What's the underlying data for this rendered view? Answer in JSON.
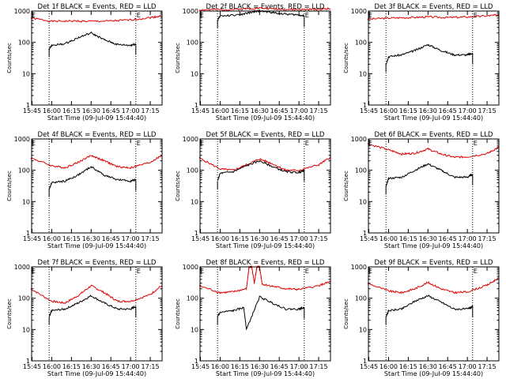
{
  "figure": {
    "colors": {
      "events": "#000000",
      "lld": "#e00000",
      "axis": "#000000",
      "background": "#ffffff"
    }
  },
  "chart_data": [
    {
      "type": "line",
      "title": "Det 1f BLACK = Events, RED = LLD",
      "xlabel": "Start Time (09-Jul-09 15:44:40)",
      "ylabel": "Counts/sec",
      "yscale": "log",
      "ylim": [
        1,
        1000
      ],
      "yticks": [
        "1",
        "10",
        "100",
        "1000"
      ],
      "xticks": [
        "15:45",
        "16:00",
        "16:15",
        "16:30",
        "16:45",
        "17:00",
        "17:15"
      ],
      "xlim": [
        "15:44:40",
        "17:24"
      ],
      "vertical_markers": [
        {
          "x": "15:58",
          "style": "dotted"
        },
        {
          "x": "17:04",
          "style": "dotted"
        }
      ],
      "marker_labels": [
        {
          "text": "E",
          "x": "15:44"
        },
        {
          "text": "E",
          "x": "17:04"
        }
      ],
      "series": [
        {
          "name": "LLD",
          "color": "red",
          "x": [
            "15:44",
            "16:00",
            "16:15",
            "16:30",
            "16:45",
            "17:00",
            "17:15",
            "17:24"
          ],
          "y": [
            600,
            470,
            480,
            470,
            480,
            520,
            620,
            700
          ]
        },
        {
          "name": "Events",
          "color": "black",
          "x": [
            "15:58",
            "16:00",
            "16:10",
            "16:20",
            "16:30",
            "16:40",
            "16:50",
            "17:00",
            "17:04"
          ],
          "y": [
            60,
            80,
            90,
            140,
            200,
            120,
            85,
            80,
            90
          ]
        }
      ]
    },
    {
      "type": "line",
      "title": "Det 2f BLACK = Events, RED = LLD",
      "xlabel": "Start Time (09-Jul-09 15:44:40)",
      "ylabel": "Counts/sec",
      "yscale": "log",
      "ylim": [
        1,
        1000
      ],
      "yticks": [
        "1",
        "10",
        "100",
        "1000"
      ],
      "xticks": [
        "15:45",
        "16:00",
        "16:15",
        "16:30",
        "16:45",
        "17:00",
        "17:15"
      ],
      "xlim": [
        "15:44:40",
        "17:24"
      ],
      "vertical_markers": [
        {
          "x": "15:58",
          "style": "dotted"
        },
        {
          "x": "17:04",
          "style": "dotted"
        }
      ],
      "marker_labels": [
        {
          "text": "E",
          "x": "15:44"
        },
        {
          "text": "E",
          "x": "17:04"
        }
      ],
      "series": [
        {
          "name": "LLD",
          "color": "red",
          "x": [
            "15:44",
            "16:00",
            "16:15",
            "16:30",
            "16:45",
            "17:00",
            "17:15",
            "17:24"
          ],
          "y": [
            1100,
            1100,
            1150,
            1250,
            1150,
            1100,
            1150,
            1200
          ]
        },
        {
          "name": "Events",
          "color": "black",
          "x": [
            "15:58",
            "16:00",
            "16:15",
            "16:25",
            "16:30",
            "16:40",
            "16:50",
            "17:00",
            "17:04"
          ],
          "y": [
            500,
            700,
            750,
            950,
            1000,
            900,
            800,
            750,
            700
          ]
        }
      ]
    },
    {
      "type": "line",
      "title": "Det 3f BLACK = Events, RED = LLD",
      "xlabel": "Start Time (09-Jul-09 15:44:40)",
      "ylabel": "Counts/sec",
      "yscale": "log",
      "ylim": [
        1,
        1000
      ],
      "yticks": [
        "1",
        "10",
        "100",
        "1000"
      ],
      "xticks": [
        "15:45",
        "16:00",
        "16:15",
        "16:30",
        "16:45",
        "17:00",
        "17:15"
      ],
      "xlim": [
        "15:44:40",
        "17:24"
      ],
      "vertical_markers": [
        {
          "x": "15:58",
          "style": "dotted"
        },
        {
          "x": "17:04",
          "style": "dotted"
        }
      ],
      "marker_labels": [
        {
          "text": "E",
          "x": "15:44"
        },
        {
          "text": "E",
          "x": "17:04"
        }
      ],
      "series": [
        {
          "name": "LLD",
          "color": "red",
          "x": [
            "15:44",
            "16:00",
            "16:15",
            "16:30",
            "16:45",
            "17:00",
            "17:15",
            "17:24"
          ],
          "y": [
            550,
            600,
            620,
            650,
            620,
            650,
            700,
            750
          ]
        },
        {
          "name": "Events",
          "color": "black",
          "x": [
            "15:58",
            "16:00",
            "16:10",
            "16:20",
            "16:30",
            "16:40",
            "16:50",
            "17:00",
            "17:04"
          ],
          "y": [
            20,
            35,
            40,
            55,
            85,
            55,
            40,
            40,
            45
          ]
        }
      ]
    },
    {
      "type": "line",
      "title": "Det 4f BLACK = Events, RED = LLD",
      "xlabel": "Start Time (09-Jul-09 15:44:40)",
      "ylabel": "Counts/sec",
      "yscale": "log",
      "ylim": [
        1,
        1000
      ],
      "yticks": [
        "1",
        "10",
        "100",
        "1000"
      ],
      "xticks": [
        "15:45",
        "16:00",
        "16:15",
        "16:30",
        "16:45",
        "17:00",
        "17:15"
      ],
      "xlim": [
        "15:44:40",
        "17:24"
      ],
      "vertical_markers": [
        {
          "x": "15:58",
          "style": "dotted"
        },
        {
          "x": "17:04",
          "style": "dotted"
        }
      ],
      "marker_labels": [
        {
          "text": "E",
          "x": "15:44"
        },
        {
          "text": "E",
          "x": "17:04"
        }
      ],
      "series": [
        {
          "name": "LLD",
          "color": "red",
          "x": [
            "15:44",
            "16:00",
            "16:10",
            "16:20",
            "16:30",
            "16:40",
            "16:50",
            "17:00",
            "17:15",
            "17:24"
          ],
          "y": [
            250,
            140,
            120,
            180,
            300,
            200,
            130,
            120,
            180,
            300
          ]
        },
        {
          "name": "Events",
          "color": "black",
          "x": [
            "15:58",
            "16:00",
            "16:10",
            "16:20",
            "16:30",
            "16:40",
            "16:50",
            "17:00",
            "17:04"
          ],
          "y": [
            25,
            40,
            45,
            70,
            130,
            70,
            50,
            45,
            50
          ]
        }
      ]
    },
    {
      "type": "line",
      "title": "Det 5f BLACK = Events, RED = LLD",
      "xlabel": "Start Time (09-Jul-09 15:44:40)",
      "ylabel": "Counts/sec",
      "yscale": "log",
      "ylim": [
        1,
        1000
      ],
      "yticks": [
        "1",
        "10",
        "100",
        "1000"
      ],
      "xticks": [
        "15:45",
        "16:00",
        "16:15",
        "16:30",
        "16:45",
        "17:00",
        "17:15"
      ],
      "xlim": [
        "15:44:40",
        "17:24"
      ],
      "vertical_markers": [
        {
          "x": "15:58",
          "style": "dotted"
        },
        {
          "x": "17:04",
          "style": "dotted"
        }
      ],
      "marker_labels": [
        {
          "text": "E",
          "x": "15:44"
        },
        {
          "text": "E",
          "x": "17:04"
        }
      ],
      "series": [
        {
          "name": "LLD",
          "color": "red",
          "x": [
            "15:44",
            "16:00",
            "16:10",
            "16:20",
            "16:30",
            "16:40",
            "16:50",
            "17:00",
            "17:15",
            "17:24"
          ],
          "y": [
            250,
            110,
            100,
            150,
            230,
            160,
            100,
            100,
            150,
            260
          ]
        },
        {
          "name": "Events",
          "color": "black",
          "x": [
            "15:58",
            "16:00",
            "16:10",
            "16:20",
            "16:30",
            "16:40",
            "16:50",
            "17:00",
            "17:04"
          ],
          "y": [
            45,
            80,
            90,
            140,
            200,
            130,
            90,
            85,
            100
          ]
        }
      ]
    },
    {
      "type": "line",
      "title": "Det 6f BLACK = Events, RED = LLD",
      "xlabel": "Start Time (09-Jul-09 15:44:40)",
      "ylabel": "Counts/sec",
      "yscale": "log",
      "ylim": [
        1,
        1000
      ],
      "yticks": [
        "1",
        "10",
        "100",
        "1000"
      ],
      "xticks": [
        "15:45",
        "16:00",
        "16:15",
        "16:30",
        "16:45",
        "17:00",
        "17:15"
      ],
      "xlim": [
        "15:44:40",
        "17:24"
      ],
      "vertical_markers": [
        {
          "x": "15:58",
          "style": "dotted"
        },
        {
          "x": "17:04",
          "style": "dotted"
        }
      ],
      "marker_labels": [
        {
          "text": "E",
          "x": "15:44"
        },
        {
          "text": "E",
          "x": "17:04"
        }
      ],
      "series": [
        {
          "name": "LLD",
          "color": "red",
          "x": [
            "15:44",
            "16:00",
            "16:10",
            "16:20",
            "16:30",
            "16:40",
            "16:50",
            "17:00",
            "17:15",
            "17:24"
          ],
          "y": [
            700,
            450,
            330,
            350,
            480,
            330,
            260,
            270,
            340,
            550
          ]
        },
        {
          "name": "Events",
          "color": "black",
          "x": [
            "15:58",
            "16:00",
            "16:10",
            "16:20",
            "16:30",
            "16:40",
            "16:50",
            "17:00",
            "17:04"
          ],
          "y": [
            30,
            55,
            60,
            100,
            160,
            100,
            60,
            60,
            75
          ]
        }
      ]
    },
    {
      "type": "line",
      "title": "Det 7f BLACK = Events, RED = LLD",
      "xlabel": "Start Time (09-Jul-09 15:44:40)",
      "ylabel": "Counts/sec",
      "yscale": "log",
      "ylim": [
        1,
        1000
      ],
      "yticks": [
        "1",
        "10",
        "100",
        "1000"
      ],
      "xticks": [
        "15:45",
        "16:00",
        "16:15",
        "16:30",
        "16:45",
        "17:00",
        "17:15"
      ],
      "xlim": [
        "15:44:40",
        "17:24"
      ],
      "vertical_markers": [
        {
          "x": "15:58",
          "style": "dotted"
        },
        {
          "x": "17:04",
          "style": "dotted"
        }
      ],
      "marker_labels": [
        {
          "text": "E",
          "x": "15:44"
        },
        {
          "text": "E",
          "x": "17:04"
        }
      ],
      "series": [
        {
          "name": "LLD",
          "color": "red",
          "x": [
            "15:44",
            "16:00",
            "16:10",
            "16:20",
            "16:30",
            "16:40",
            "16:50",
            "17:00",
            "17:15",
            "17:24"
          ],
          "y": [
            200,
            80,
            70,
            120,
            250,
            150,
            80,
            80,
            130,
            260
          ]
        },
        {
          "name": "Events",
          "color": "black",
          "x": [
            "15:58",
            "16:00",
            "16:10",
            "16:20",
            "16:30",
            "16:40",
            "16:50",
            "17:00",
            "17:04"
          ],
          "y": [
            25,
            40,
            45,
            70,
            120,
            70,
            45,
            45,
            55
          ]
        }
      ]
    },
    {
      "type": "line",
      "title": "Det 8f BLACK = Events, RED = LLD",
      "xlabel": "Start Time (09-Jul-09 15:44:40)",
      "ylabel": "Counts/sec",
      "yscale": "log",
      "ylim": [
        1,
        1000
      ],
      "yticks": [
        "1",
        "10",
        "100",
        "1000"
      ],
      "xticks": [
        "15:45",
        "16:00",
        "16:15",
        "16:30",
        "16:45",
        "17:00",
        "17:15"
      ],
      "xlim": [
        "15:44:40",
        "17:24"
      ],
      "vertical_markers": [
        {
          "x": "15:58",
          "style": "dotted"
        },
        {
          "x": "17:04",
          "style": "dotted"
        }
      ],
      "marker_labels": [
        {
          "text": "E",
          "x": "15:44"
        },
        {
          "text": "E",
          "x": "17:04"
        }
      ],
      "series": [
        {
          "name": "LLD",
          "color": "red",
          "x": [
            "15:44",
            "16:00",
            "16:10",
            "16:20",
            "16:22",
            "16:24",
            "16:26",
            "16:28",
            "16:30",
            "16:32",
            "16:40",
            "16:50",
            "17:00",
            "17:15",
            "17:24"
          ],
          "y": [
            250,
            150,
            160,
            200,
            1000,
            1000,
            300,
            1000,
            1000,
            280,
            240,
            200,
            190,
            250,
            340
          ]
        },
        {
          "name": "Events",
          "color": "black",
          "x": [
            "15:58",
            "16:00",
            "16:10",
            "16:18",
            "16:20",
            "16:30",
            "16:40",
            "16:50",
            "17:00",
            "17:04"
          ],
          "y": [
            25,
            35,
            40,
            50,
            10,
            110,
            70,
            45,
            45,
            50
          ]
        }
      ]
    },
    {
      "type": "line",
      "title": "Det 9f BLACK = Events, RED = LLD",
      "xlabel": "Start Time (09-Jul-09 15:44:40)",
      "ylabel": "Counts/sec",
      "yscale": "log",
      "ylim": [
        1,
        1000
      ],
      "yticks": [
        "1",
        "10",
        "100",
        "1000"
      ],
      "xticks": [
        "15:45",
        "16:00",
        "16:15",
        "16:30",
        "16:45",
        "17:00",
        "17:15"
      ],
      "xlim": [
        "15:44:40",
        "17:24"
      ],
      "vertical_markers": [
        {
          "x": "15:58",
          "style": "dotted"
        },
        {
          "x": "17:04",
          "style": "dotted"
        }
      ],
      "marker_labels": [
        {
          "text": "E",
          "x": "15:44"
        },
        {
          "text": "E",
          "x": "17:04"
        }
      ],
      "series": [
        {
          "name": "LLD",
          "color": "red",
          "x": [
            "15:44",
            "16:00",
            "16:10",
            "16:20",
            "16:30",
            "16:40",
            "16:50",
            "17:00",
            "17:15",
            "17:24"
          ],
          "y": [
            300,
            170,
            150,
            200,
            320,
            200,
            150,
            160,
            260,
            450
          ]
        },
        {
          "name": "Events",
          "color": "black",
          "x": [
            "15:58",
            "16:00",
            "16:10",
            "16:20",
            "16:30",
            "16:40",
            "16:50",
            "17:00",
            "17:04"
          ],
          "y": [
            25,
            40,
            45,
            80,
            120,
            75,
            45,
            45,
            55
          ]
        }
      ]
    }
  ]
}
